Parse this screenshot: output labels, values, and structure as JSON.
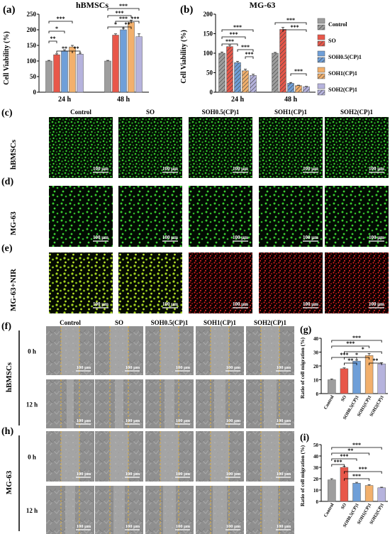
{
  "colors": {
    "control": "#9e9e9e",
    "so": "#e8574a",
    "soh05": "#6f9fd8",
    "soh1": "#f2b06c",
    "soh2": "#b6b3dd",
    "green_cells": "#2fc02a",
    "red_cells": "#e02020",
    "yellow_cells": "#9acd1e",
    "guide": "#e3b03a"
  },
  "panel_a": {
    "tag": "(a)",
    "title": "hBMSCs",
    "ylabel": "Cell Viability (%)",
    "groups": [
      "24 h",
      "48 h"
    ]
  },
  "panel_b": {
    "tag": "(b)",
    "title": "MG-63",
    "ylabel": "Cell Viability (%)",
    "groups": [
      "24 h",
      "48 h"
    ]
  },
  "legend": [
    "Control",
    "SO",
    "SOH0.5(CP)1",
    "SOH1(CP)1",
    "SOH2(CP)1"
  ],
  "stars": {
    "s1": "*",
    "s2": "**",
    "s3": "***"
  },
  "fluor": {
    "cols": [
      "Control",
      "SO",
      "SOH0.5(CP)1",
      "SOH1(CP)1",
      "SOH2(CP)1"
    ],
    "rows": [
      {
        "tag": "(c)",
        "label": "hBMSCs",
        "type": "green"
      },
      {
        "tag": "(d)",
        "label": "MG-63",
        "type": "green"
      },
      {
        "tag": "(e)",
        "label": "MG-63+NIR",
        "type": "mixed"
      }
    ],
    "scale": "100 μm"
  },
  "migration": {
    "cols": [
      "Control",
      "SO",
      "SOH0.5(CP)1",
      "SOH1(CP)1",
      "SOH2(CP)1"
    ],
    "panels": [
      {
        "tag": "(f)",
        "label": "hBMSCs"
      },
      {
        "tag": "(h)",
        "label": "MG-63"
      }
    ],
    "times": [
      "0 h",
      "12 h"
    ],
    "scale": "100 μm"
  },
  "chart_data": [
    {
      "id": "a",
      "type": "bar",
      "title": "hBMSCs",
      "ylabel": "Cell Viability (%)",
      "ylim": [
        0,
        250
      ],
      "yticks": [
        0,
        50,
        100,
        150,
        200,
        250
      ],
      "categories": [
        "24 h",
        "48 h"
      ],
      "series": [
        {
          "name": "Control",
          "values": [
            100,
            100
          ]
        },
        {
          "name": "SO",
          "values": [
            120,
            183
          ]
        },
        {
          "name": "SOH0.5(CP)1",
          "values": [
            132,
            200
          ]
        },
        {
          "name": "SOH1(CP)1",
          "values": [
            145,
            224
          ]
        },
        {
          "name": "SOH2(CP)1",
          "values": [
            122,
            178
          ]
        }
      ],
      "errors": [
        [
          2,
          2
        ],
        [
          3,
          4
        ],
        [
          4,
          5
        ],
        [
          5,
          7
        ],
        [
          3,
          9
        ]
      ]
    },
    {
      "id": "b",
      "type": "bar",
      "title": "MG-63",
      "ylabel": "Cell Viability (%)",
      "ylim": [
        0,
        200
      ],
      "yticks": [
        0,
        50,
        100,
        150,
        200
      ],
      "categories": [
        "24 h",
        "48 h"
      ],
      "series": [
        {
          "name": "Control",
          "values": [
            100,
            100
          ]
        },
        {
          "name": "SO",
          "values": [
            117,
            161
          ]
        },
        {
          "name": "SOH0.5(CP)1",
          "values": [
            76,
            23
          ]
        },
        {
          "name": "SOH1(CP)1",
          "values": [
            55,
            17
          ]
        },
        {
          "name": "SOH2(CP)1",
          "values": [
            43,
            14
          ]
        }
      ],
      "errors": [
        [
          3,
          2
        ],
        [
          4,
          5
        ],
        [
          3,
          2
        ],
        [
          4,
          1
        ],
        [
          3,
          1
        ]
      ]
    },
    {
      "id": "g",
      "type": "bar",
      "ylabel": "Ratio of cell migration (%)",
      "ylim": [
        0,
        40
      ],
      "yticks": [
        0,
        10,
        20,
        30,
        40
      ],
      "categories": [
        "Control",
        "SO",
        "SOH0.5(CP)1",
        "SOH1(CP)1",
        "SOH2(CP)1"
      ],
      "values": [
        10,
        18,
        23.5,
        27.5,
        21.5
      ],
      "errors": [
        0.6,
        0.6,
        0.8,
        1.5,
        0.8
      ]
    },
    {
      "id": "i",
      "type": "bar",
      "ylabel": "Ratio of cell migration (%)",
      "ylim": [
        0,
        50
      ],
      "yticks": [
        0,
        10,
        20,
        30,
        40,
        50
      ],
      "categories": [
        "Control",
        "SO",
        "SOH0.5(CP)1",
        "SOH1(CP)1",
        "SOH2(CP)1"
      ],
      "values": [
        19,
        30,
        16,
        14,
        12
      ],
      "errors": [
        1,
        1,
        0.8,
        0.6,
        0.5
      ]
    }
  ]
}
